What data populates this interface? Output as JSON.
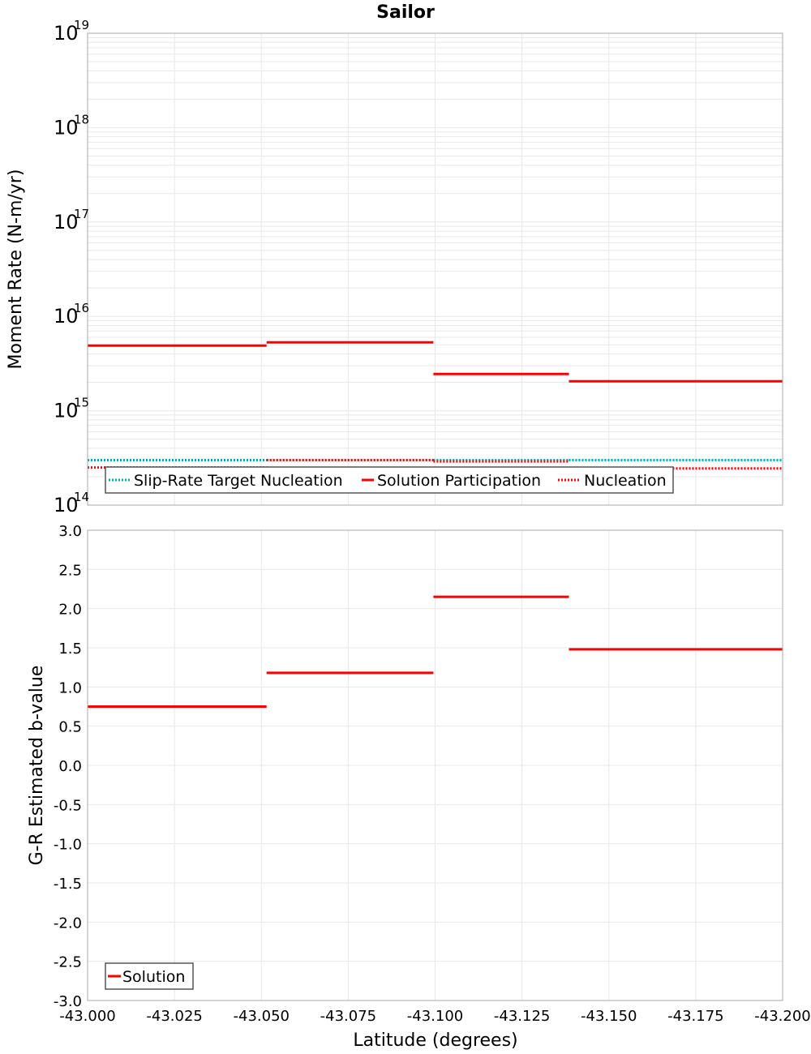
{
  "colors": {
    "solution": "#ff0000",
    "target": "#00b0b0",
    "nucleation": "#ff0000",
    "grid": "#e8e8e8",
    "frame": "#aaaaaa"
  },
  "chart_data": [
    {
      "type": "line",
      "title": "Sailor",
      "ylabel": "Moment Rate (N-m/yr)",
      "xlabel": "",
      "yscale": "log",
      "ylim": [
        100000000000000.0,
        1e+19
      ],
      "xlim": [
        -43.0,
        -43.2
      ],
      "y_tick_mantissa": "10",
      "y_tick_exponents": [
        "14",
        "15",
        "16",
        "17",
        "18",
        "19"
      ],
      "legend_position": "bottom-left",
      "series": [
        {
          "name": "Slip-Rate Target Nucleation",
          "style": "dotted",
          "color": "#00b0b0",
          "segments": [
            {
              "x0": -43.0,
              "x1": -43.0515,
              "y": 300000000000000.0
            },
            {
              "x0": -43.0515,
              "x1": -43.0995,
              "y": 300000000000000.0
            },
            {
              "x0": -43.0995,
              "x1": -43.1385,
              "y": 300000000000000.0
            },
            {
              "x0": -43.1385,
              "x1": -43.2,
              "y": 300000000000000.0
            }
          ]
        },
        {
          "name": "Solution Participation",
          "style": "solid",
          "color": "#ff0000",
          "segments": [
            {
              "x0": -43.0,
              "x1": -43.0515,
              "y": 4900000000000000.0
            },
            {
              "x0": -43.0515,
              "x1": -43.0995,
              "y": 5300000000000000.0
            },
            {
              "x0": -43.0995,
              "x1": -43.1385,
              "y": 2450000000000000.0
            },
            {
              "x0": -43.1385,
              "x1": -43.2,
              "y": 2050000000000000.0
            }
          ]
        },
        {
          "name": "Nucleation",
          "style": "dotted",
          "color": "#ff0000",
          "segments": [
            {
              "x0": -43.0,
              "x1": -43.0515,
              "y": 250000000000000.0
            },
            {
              "x0": -43.0515,
              "x1": -43.0995,
              "y": 300000000000000.0
            },
            {
              "x0": -43.0995,
              "x1": -43.1385,
              "y": 290000000000000.0
            },
            {
              "x0": -43.1385,
              "x1": -43.2,
              "y": 245000000000000.0
            }
          ]
        }
      ]
    },
    {
      "type": "line",
      "title": "",
      "ylabel": "G-R Estimated b-value",
      "xlabel": "Latitude (degrees)",
      "yscale": "linear",
      "ylim": [
        -3.0,
        3.0
      ],
      "xlim": [
        -43.0,
        -43.2
      ],
      "y_ticks": [
        "3.0",
        "2.5",
        "2.0",
        "1.5",
        "1.0",
        "0.5",
        "0.0",
        "-0.5",
        "-1.0",
        "-1.5",
        "-2.0",
        "-2.5",
        "-3.0"
      ],
      "x_ticks": [
        "-43.000",
        "-43.025",
        "-43.050",
        "-43.075",
        "-43.100",
        "-43.125",
        "-43.150",
        "-43.175",
        "-43.200"
      ],
      "legend_position": "bottom-left",
      "series": [
        {
          "name": "Solution",
          "style": "solid",
          "color": "#ff0000",
          "segments": [
            {
              "x0": -43.0,
              "x1": -43.0515,
              "y": 0.75
            },
            {
              "x0": -43.0515,
              "x1": -43.0995,
              "y": 1.18
            },
            {
              "x0": -43.0995,
              "x1": -43.1385,
              "y": 2.15
            },
            {
              "x0": -43.1385,
              "x1": -43.2,
              "y": 1.48
            }
          ]
        }
      ]
    }
  ]
}
